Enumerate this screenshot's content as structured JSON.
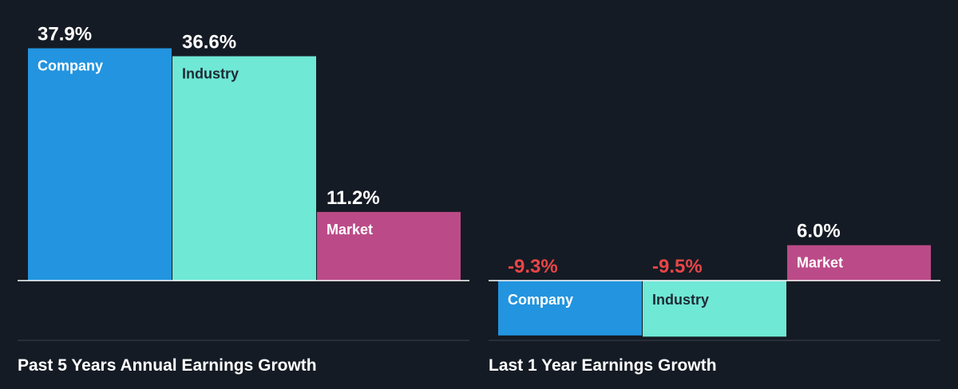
{
  "colors": {
    "background": "#151b24",
    "company": "#2394df",
    "industry": "#6fe8d6",
    "market": "#bb4b88",
    "positive_label": "#ffffff",
    "negative_label": "#e84646",
    "axis": "#ffffff",
    "divider": "#3a404a",
    "title": "#ffffff"
  },
  "chart_data": [
    {
      "type": "bar",
      "title": "Past 5 Years Annual Earnings Growth",
      "categories": [
        "Company",
        "Industry",
        "Market"
      ],
      "values": [
        37.9,
        36.6,
        11.2
      ],
      "value_labels": [
        "37.9%",
        "36.6%",
        "11.2%"
      ],
      "unit": "%",
      "ylim": [
        0,
        37.9
      ],
      "grid": false,
      "legend": "none"
    },
    {
      "type": "bar",
      "title": "Last 1 Year Earnings Growth",
      "categories": [
        "Company",
        "Industry",
        "Market"
      ],
      "values": [
        -9.3,
        -9.5,
        6.0
      ],
      "value_labels": [
        "-9.3%",
        "-9.5%",
        "6.0%"
      ],
      "unit": "%",
      "ylim": [
        -9.5,
        6.0
      ],
      "grid": false,
      "legend": "none"
    }
  ]
}
